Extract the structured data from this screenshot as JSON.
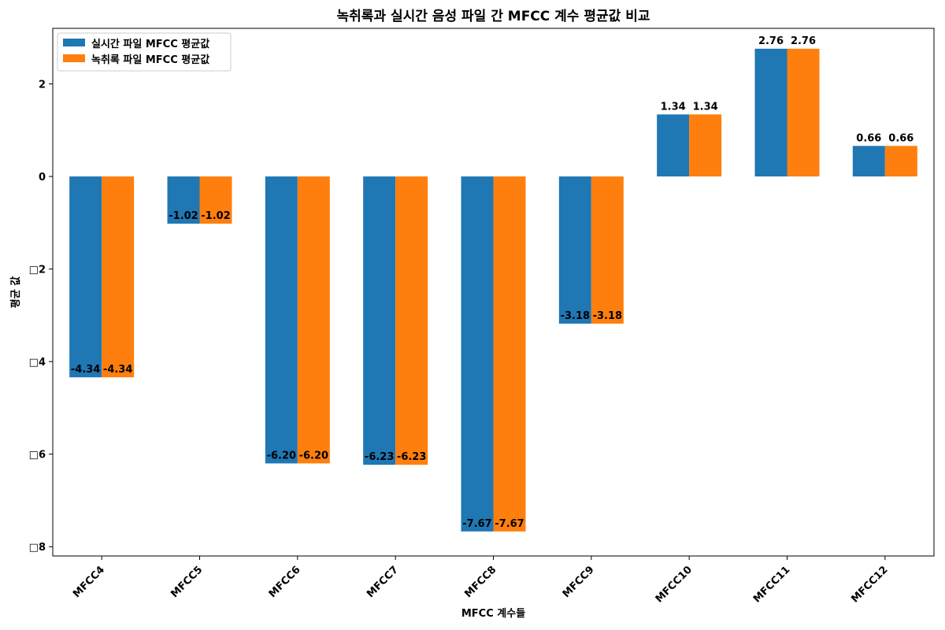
{
  "chart_data": {
    "type": "bar",
    "title": "녹취록과 실시간 음성 파일 간 MFCC 계수 평균값 비교",
    "xlabel": "MFCC 계수들",
    "ylabel": "평균 값",
    "categories": [
      "MFCC4",
      "MFCC5",
      "MFCC6",
      "MFCC7",
      "MFCC8",
      "MFCC9",
      "MFCC10",
      "MFCC11",
      "MFCC12"
    ],
    "series": [
      {
        "name": "실시간 파일 MFCC 평균값",
        "color": "#1f77b4",
        "values": [
          -4.34,
          -1.02,
          -6.2,
          -6.23,
          -7.67,
          -3.18,
          1.34,
          2.76,
          0.66
        ],
        "labels": [
          "-4.34",
          "-1.02",
          "-6.20",
          "-6.23",
          "-7.67",
          "-3.18",
          "1.34",
          "2.76",
          "0.66"
        ]
      },
      {
        "name": "녹취록 파일 MFCC 평균값",
        "color": "#ff7f0e",
        "values": [
          -4.34,
          -1.02,
          -6.2,
          -6.23,
          -7.67,
          -3.18,
          1.34,
          2.76,
          0.66
        ],
        "labels": [
          "-4.34",
          "-1.02",
          "-6.20",
          "-6.23",
          "-7.67",
          "-3.18",
          "1.34",
          "2.76",
          "0.66"
        ]
      }
    ],
    "yticks": [
      2,
      0,
      -2,
      -4,
      -6,
      -8
    ],
    "ytick_labels": [
      "2",
      "0",
      "□2",
      "□4",
      "□6",
      "□8"
    ],
    "ylim": [
      -8.2,
      3.2
    ],
    "legend_position": "top-left",
    "grid": false
  }
}
